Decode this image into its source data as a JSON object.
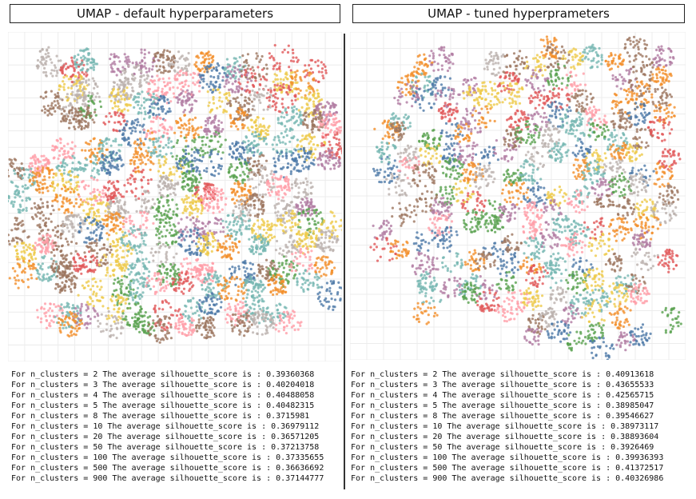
{
  "panels": [
    {
      "title": "UMAP - default hyperparameters",
      "scores": [
        {
          "n": "2",
          "score": "0.39360368"
        },
        {
          "n": "3",
          "score": "0.40204018"
        },
        {
          "n": "4",
          "score": "0.40488058"
        },
        {
          "n": "5",
          "score": "0.40482315"
        },
        {
          "n": "8",
          "score": "0.3715981"
        },
        {
          "n": "10",
          "score": "0.36979112"
        },
        {
          "n": "20",
          "score": "0.36571205"
        },
        {
          "n": "50",
          "score": "0.37213758"
        },
        {
          "n": "100",
          "score": "0.37335655"
        },
        {
          "n": "500",
          "score": "0.36636692"
        },
        {
          "n": "900",
          "score": "0.37144777"
        }
      ]
    },
    {
      "title": "UMAP - tuned hyperprameters",
      "scores": [
        {
          "n": "2",
          "score": "0.40913618"
        },
        {
          "n": "3",
          "score": "0.43655533"
        },
        {
          "n": "4",
          "score": "0.42565715"
        },
        {
          "n": "5",
          "score": "0.38985047"
        },
        {
          "n": "8",
          "score": "0.39546627"
        },
        {
          "n": "10",
          "score": "0.38973117"
        },
        {
          "n": "20",
          "score": "0.38893604"
        },
        {
          "n": "50",
          "score": "0.3926469"
        },
        {
          "n": "100",
          "score": "0.39936393"
        },
        {
          "n": "500",
          "score": "0.41372517"
        },
        {
          "n": "900",
          "score": "0.40326986"
        }
      ]
    }
  ],
  "line_template": {
    "prefix": "For n_clusters = ",
    "middle": " The average silhouette_score is : "
  },
  "chart_data": [
    {
      "type": "scatter",
      "title": "UMAP - default hyperparameters",
      "grid": true,
      "axes_labels_shown": false,
      "palette": [
        "#4e79a7",
        "#f28e2b",
        "#e15759",
        "#76b7b2",
        "#59a14f",
        "#edc948",
        "#b07aa1",
        "#ff9da7",
        "#9c755f",
        "#bab0ac"
      ]
    },
    {
      "type": "scatter",
      "title": "UMAP - tuned hyperprameters",
      "grid": true,
      "axes_labels_shown": false,
      "palette": [
        "#4e79a7",
        "#f28e2b",
        "#e15759",
        "#76b7b2",
        "#59a14f",
        "#edc948",
        "#b07aa1",
        "#ff9da7",
        "#9c755f",
        "#bab0ac"
      ]
    }
  ]
}
